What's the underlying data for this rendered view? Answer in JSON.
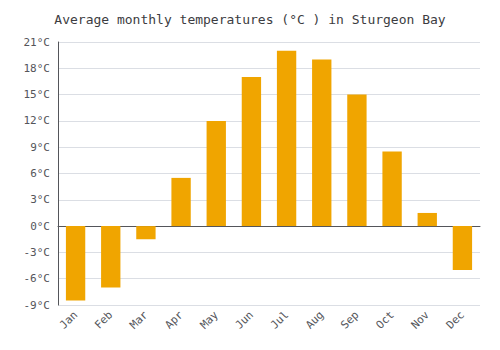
{
  "chart_data": {
    "type": "bar",
    "title": "Average monthly temperatures (°C ) in Sturgeon Bay",
    "categories": [
      "Jan",
      "Feb",
      "Mar",
      "Apr",
      "May",
      "Jun",
      "Jul",
      "Aug",
      "Sep",
      "Oct",
      "Nov",
      "Dec"
    ],
    "values": [
      -8.5,
      -7.0,
      -1.5,
      5.5,
      12.0,
      17.0,
      20.0,
      19.0,
      15.0,
      8.5,
      1.5,
      -5.0
    ],
    "color": "#F0A500",
    "ylim": [
      -9,
      21
    ],
    "yticks": [
      {
        "value": -9,
        "label": "-9°C"
      },
      {
        "value": -6,
        "label": "-6°C"
      },
      {
        "value": -3,
        "label": "-3°C"
      },
      {
        "value": 0,
        "label": "0°C"
      },
      {
        "value": 3,
        "label": "3°C"
      },
      {
        "value": 6,
        "label": "6°C"
      },
      {
        "value": 9,
        "label": "9°C"
      },
      {
        "value": 12,
        "label": "12°C"
      },
      {
        "value": 15,
        "label": "15°C"
      },
      {
        "value": 18,
        "label": "18°C"
      },
      {
        "value": 21,
        "label": "21°C"
      }
    ],
    "grid": true
  }
}
